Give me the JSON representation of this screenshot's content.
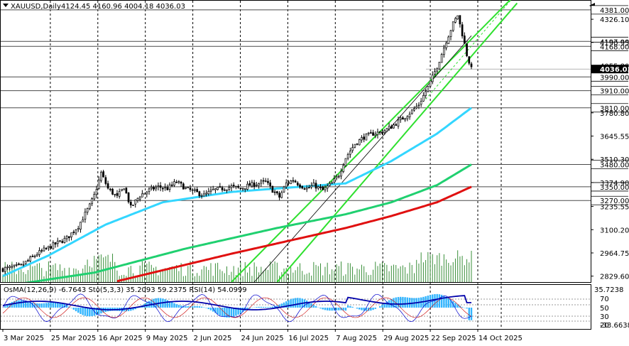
{
  "header": {
    "symbol": "XAUUSD,Daily",
    "ohlc": "4124.45 4160.96 4004.18 4036.03"
  },
  "indicators": {
    "header": "OsMA(12,26,9) -6.7643  Sto(5,3,3) 35.2093 59.2375  RSI(14) 54.0999",
    "top_label": "35.7238",
    "level_70": "70",
    "level_50": "50",
    "level_30": "30",
    "level_20": "20",
    "bottom_label": "-33.6638"
  },
  "chart_data": {
    "type": "candlestick",
    "title": "XAUUSD,Daily",
    "ylim": [
      2795,
      4430
    ],
    "price_ticks": [
      4326.1,
      4190.95,
      4055.8,
      3780.8,
      3645.55,
      3510.3,
      3374.9,
      3235.55,
      3100.2,
      2964.75,
      2829.6
    ],
    "horizontal_levels": [
      {
        "value": 4381.0,
        "label": "4381.00"
      },
      {
        "value": 4197.0,
        "label": "4197.00"
      },
      {
        "value": 4168.0,
        "label": "4168.00"
      },
      {
        "value": 3990.0,
        "label": "3990.00"
      },
      {
        "value": 3910.0,
        "label": "3910.00"
      },
      {
        "value": 3810.0,
        "label": "3810.00"
      },
      {
        "value": 3480.0,
        "label": "3480.00"
      },
      {
        "value": 3350.0,
        "label": "3350.00"
      },
      {
        "value": 3270.0,
        "label": "3270.00"
      }
    ],
    "current_price": "4036.03",
    "x_labels": [
      "3 Mar 2025",
      "25 Mar 2025",
      "16 Apr 2025",
      "9 May 2025",
      "2 Jun 2025",
      "24 Jun 2025",
      "16 Jul 2025",
      "7 Aug 2025",
      "29 Aug 2025",
      "22 Sep 2025",
      "14 Oct 2025"
    ],
    "close_keypoints": [
      [
        0,
        2870
      ],
      [
        8,
        2890
      ],
      [
        15,
        2960
      ],
      [
        22,
        3010
      ],
      [
        28,
        3050
      ],
      [
        33,
        3120
      ],
      [
        38,
        3240
      ],
      [
        40,
        3300
      ],
      [
        43,
        3430
      ],
      [
        46,
        3340
      ],
      [
        50,
        3290
      ],
      [
        53,
        3350
      ],
      [
        56,
        3230
      ],
      [
        60,
        3300
      ],
      [
        64,
        3330
      ],
      [
        68,
        3350
      ],
      [
        72,
        3340
      ],
      [
        76,
        3380
      ],
      [
        80,
        3340
      ],
      [
        84,
        3320
      ],
      [
        88,
        3300
      ],
      [
        92,
        3330
      ],
      [
        96,
        3340
      ],
      [
        100,
        3350
      ],
      [
        104,
        3340
      ],
      [
        108,
        3360
      ],
      [
        112,
        3370
      ],
      [
        115,
        3380
      ],
      [
        118,
        3330
      ],
      [
        121,
        3290
      ],
      [
        124,
        3370
      ],
      [
        127,
        3390
      ],
      [
        130,
        3360
      ],
      [
        133,
        3340
      ],
      [
        136,
        3360
      ],
      [
        140,
        3330
      ],
      [
        144,
        3370
      ],
      [
        147,
        3420
      ],
      [
        150,
        3520
      ],
      [
        154,
        3600
      ],
      [
        158,
        3640
      ],
      [
        162,
        3660
      ],
      [
        166,
        3670
      ],
      [
        170,
        3700
      ],
      [
        174,
        3740
      ],
      [
        178,
        3780
      ],
      [
        182,
        3830
      ],
      [
        186,
        3930
      ],
      [
        190,
        4050
      ],
      [
        194,
        4200
      ],
      [
        197,
        4300
      ],
      [
        199,
        4350
      ],
      [
        201,
        4240
      ],
      [
        203,
        4120
      ],
      [
        205,
        4036
      ]
    ],
    "moving_averages": [
      {
        "color": "#33d6ff",
        "keypoints": [
          [
            0,
            2830
          ],
          [
            20,
            2950
          ],
          [
            45,
            3130
          ],
          [
            70,
            3260
          ],
          [
            100,
            3320
          ],
          [
            130,
            3350
          ],
          [
            150,
            3370
          ],
          [
            170,
            3500
          ],
          [
            190,
            3660
          ],
          [
            205,
            3810
          ]
        ]
      },
      {
        "color": "#20d070",
        "keypoints": [
          [
            0,
            2770
          ],
          [
            40,
            2850
          ],
          [
            80,
            2990
          ],
          [
            120,
            3110
          ],
          [
            150,
            3190
          ],
          [
            170,
            3260
          ],
          [
            190,
            3360
          ],
          [
            205,
            3480
          ]
        ]
      },
      {
        "color": "#e01010",
        "keypoints": [
          [
            50,
            2800
          ],
          [
            100,
            2960
          ],
          [
            150,
            3110
          ],
          [
            170,
            3180
          ],
          [
            190,
            3260
          ],
          [
            205,
            3350
          ]
        ]
      }
    ],
    "series": [
      {
        "values": [
          3270,
          3350,
          3480,
          3810
        ]
      }
    ]
  }
}
